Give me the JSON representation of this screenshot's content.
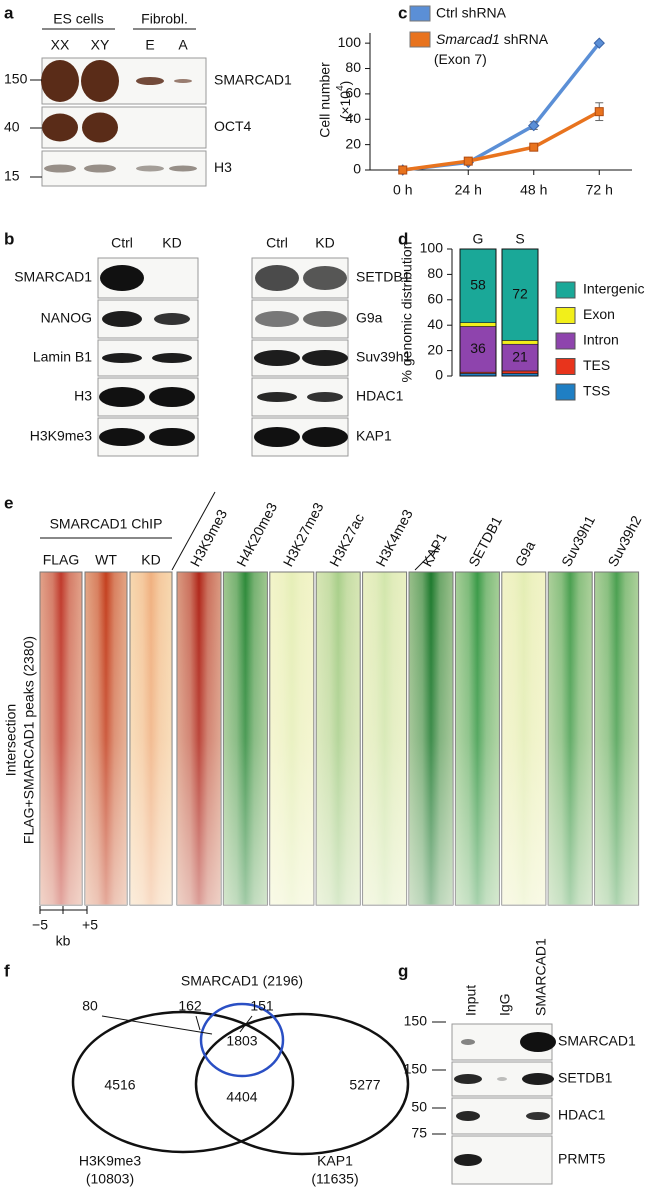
{
  "panel_labels": [
    "a",
    "b",
    "c",
    "d",
    "e",
    "f",
    "g"
  ],
  "panel_a": {
    "groups": [
      "ES cells",
      "Fibrobl."
    ],
    "lanes": [
      "XX",
      "XY",
      "E",
      "A"
    ],
    "markers": [
      150,
      40,
      15
    ],
    "proteins": [
      "SMARCAD1",
      "OCT4",
      "H3"
    ]
  },
  "panel_b": {
    "lanes": [
      "Ctrl",
      "KD",
      "Ctrl",
      "KD"
    ],
    "left_proteins": [
      "SMARCAD1",
      "NANOG",
      "Lamin B1",
      "H3",
      "H3K9me3"
    ],
    "right_proteins": [
      "SETDB1",
      "G9a",
      "Suv39h1",
      "HDAC1",
      "KAP1"
    ]
  },
  "chart_data": [
    {
      "type": "line",
      "ylabel": "Cell number",
      "ylabel_unit": [
        "(×10",
        "4",
        ")"
      ],
      "categories": [
        "0 h",
        "24 h",
        "48 h",
        "72 h"
      ],
      "ylim": [
        0,
        108
      ],
      "yticks": [
        0,
        20,
        40,
        60,
        80,
        100
      ],
      "series": [
        {
          "name": "Ctrl shRNA",
          "color": "#5b8fd6",
          "marker": "diamond",
          "values": [
            0,
            6,
            35,
            100
          ],
          "errors": [
            0,
            1,
            3,
            0
          ]
        },
        {
          "name": "Smarcad1 shRNA (Exon 7)",
          "italic_first_word": true,
          "color": "#e8731e",
          "marker": "square",
          "values": [
            0,
            7,
            18,
            46
          ],
          "errors": [
            0,
            1,
            1,
            7
          ]
        }
      ],
      "legend": "upper left"
    },
    {
      "type": "stacked_bar",
      "ylabel": "% genomic distribution",
      "categories": [
        "G",
        "S"
      ],
      "ylim": [
        0,
        100
      ],
      "yticks": [
        0,
        20,
        40,
        60,
        80,
        100
      ],
      "series": [
        {
          "name": "TSS",
          "color": "#1f7fc4",
          "values": [
            2,
            2
          ]
        },
        {
          "name": "TES",
          "color": "#e8341c",
          "values": [
            1,
            2
          ]
        },
        {
          "name": "Intron",
          "color": "#8e44ad",
          "values": [
            36,
            21
          ],
          "show_values": true
        },
        {
          "name": "Exon",
          "color": "#f2ef1a",
          "values": [
            3,
            3
          ]
        },
        {
          "name": "Intergenic",
          "color": "#1aa898",
          "values": [
            58,
            72
          ],
          "show_values": true
        }
      ],
      "legend": "right"
    }
  ],
  "panel_e": {
    "group_label": "SMARCAD1 ChIP",
    "chip_columns": [
      {
        "label": "FLAG",
        "color": "#c0392b"
      },
      {
        "label": "WT",
        "color": "#c4401f"
      },
      {
        "label": "KD",
        "color": "#f0b080"
      }
    ],
    "columns": [
      {
        "label": "H3K9me3",
        "color": "#b0261a"
      },
      {
        "label": "H4K20me3",
        "color": "#2e8b3a"
      },
      {
        "label": "H3K27me3",
        "color": "#e6efb8"
      },
      {
        "label": "H3K27ac",
        "color": "#a9cf8a"
      },
      {
        "label": "H3K4me3",
        "color": "#d2e6ac"
      },
      {
        "label": "KAP1",
        "color": "#1e7a2e"
      },
      {
        "label": "SETDB1",
        "color": "#3a9a48"
      },
      {
        "label": "G9a",
        "color": "#e4edb4"
      },
      {
        "label": "Suv39h1",
        "color": "#4aa050"
      },
      {
        "label": "Suv39h2",
        "color": "#4aa050"
      }
    ],
    "row_label": [
      "Intersection",
      "FLAG+SMARCAD1 peaks (2380)"
    ],
    "scale": [
      "−5",
      "kb",
      "+5"
    ]
  },
  "panel_f": {
    "set_label": "SMARCAD1 (2196)",
    "regions": {
      "smarcad1_h3k9me3": 80,
      "smarcad1_only": 162,
      "smarcad1_kap1": 151,
      "all": 1803,
      "h3k9me3_only": 4516,
      "h3k9me3_kap1": 4404,
      "kap1_only": 5277
    },
    "sets": [
      {
        "name": "H3K9me3",
        "count": "(10803)"
      },
      {
        "name": "KAP1",
        "count": "(11635)"
      }
    ]
  },
  "panel_g": {
    "lanes": [
      "Input",
      "IgG",
      "SMARCAD1"
    ],
    "markers": [
      150,
      150,
      50,
      75
    ],
    "proteins": [
      "SMARCAD1",
      "SETDB1",
      "HDAC1",
      "PRMT5"
    ]
  }
}
